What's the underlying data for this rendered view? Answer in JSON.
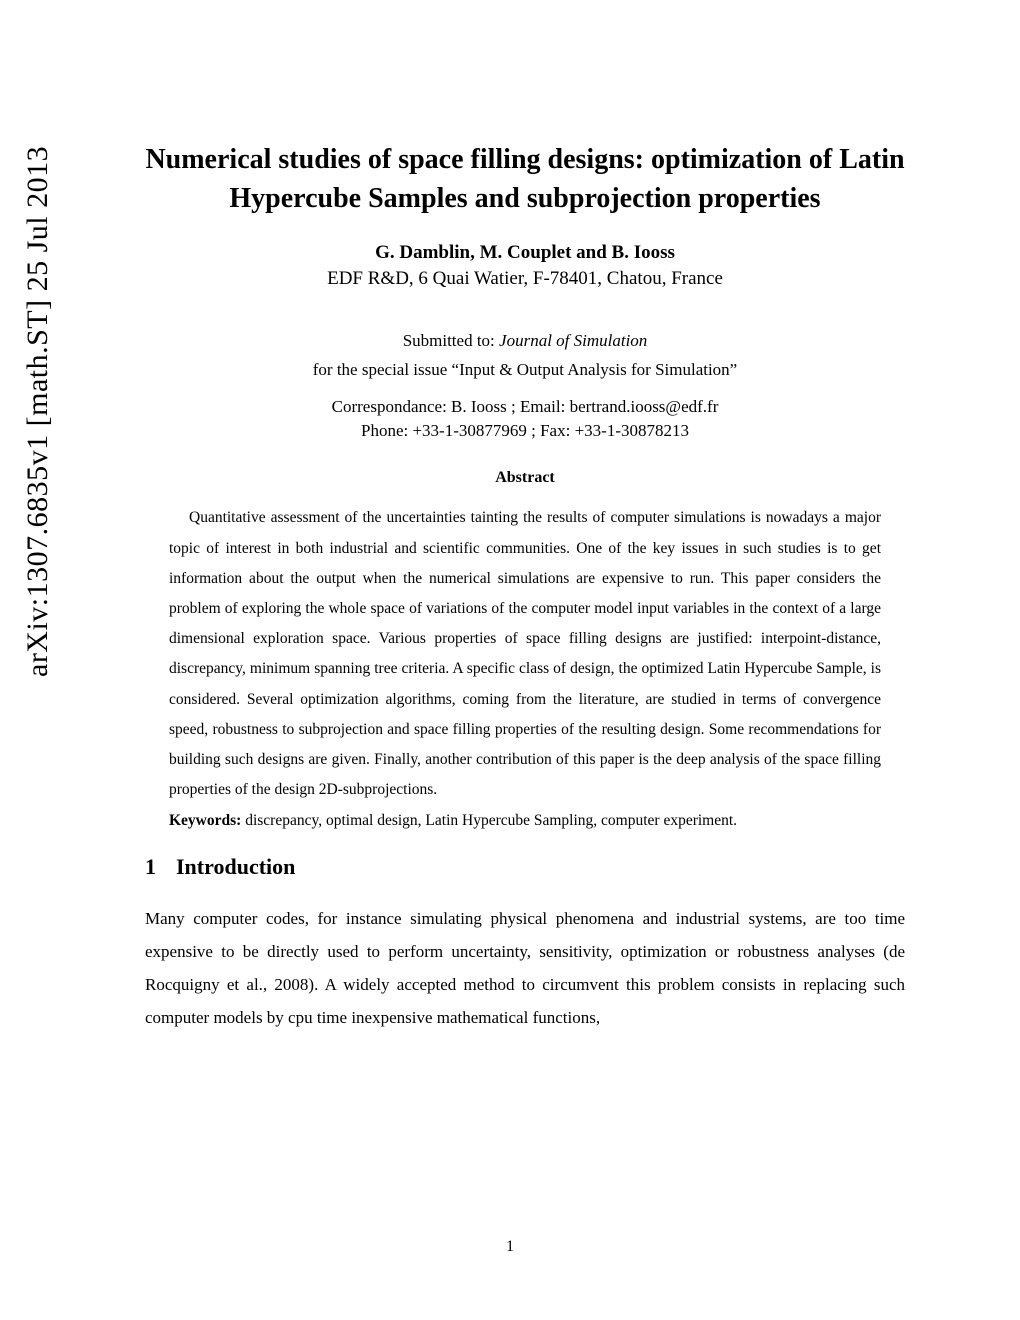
{
  "arxiv": "arXiv:1307.6835v1  [math.ST]  25 Jul 2013",
  "title": "Numerical studies of space filling designs: optimization of Latin Hypercube Samples and subprojection properties",
  "authors": "G. Damblin, M. Couplet and B. Iooss",
  "affiliation": "EDF R&D, 6 Quai Watier, F-78401, Chatou, France",
  "submitted_prefix": "Submitted to: ",
  "submitted_journal": "Journal of Simulation",
  "special_issue": "for the special issue “Input & Output Analysis for Simulation”",
  "correspondence": "Correspondance: B. Iooss ; Email: bertrand.iooss@edf.fr",
  "phone_fax": "Phone: +33-1-30877969 ; Fax: +33-1-30878213",
  "abstract_heading": "Abstract",
  "abstract_body": "Quantitative assessment of the uncertainties tainting the results of computer simulations is nowadays a major topic of interest in both industrial and scientific communities. One of the key issues in such studies is to get information about the output when the numerical simulations are expensive to run. This paper considers the problem of exploring the whole space of variations of the computer model input variables in the context of a large dimensional exploration space. Various properties of space filling designs are justified: interpoint-distance, discrepancy, minimum spanning tree criteria. A specific class of design, the optimized Latin Hypercube Sample, is considered. Several optimization algorithms, coming from the literature, are studied in terms of convergence speed, robustness to subprojection and space filling properties of the resulting design. Some recommendations for building such designs are given. Finally, another contribution of this paper is the deep analysis of the space filling properties of the design 2D-subprojections.",
  "keywords_label": "Keywords:",
  "keywords_text": " discrepancy, optimal design, Latin Hypercube Sampling, computer experiment.",
  "section1_num": "1",
  "section1_title": "Introduction",
  "intro_para": "Many computer codes, for instance simulating physical phenomena and industrial systems, are too time expensive to be directly used to perform uncertainty, sensitivity, optimization or robustness analyses (de Rocquigny et al., 2008). A widely accepted method to circumvent this problem consists in replacing such computer models by cpu time inexpensive mathematical functions,",
  "page_number": "1"
}
